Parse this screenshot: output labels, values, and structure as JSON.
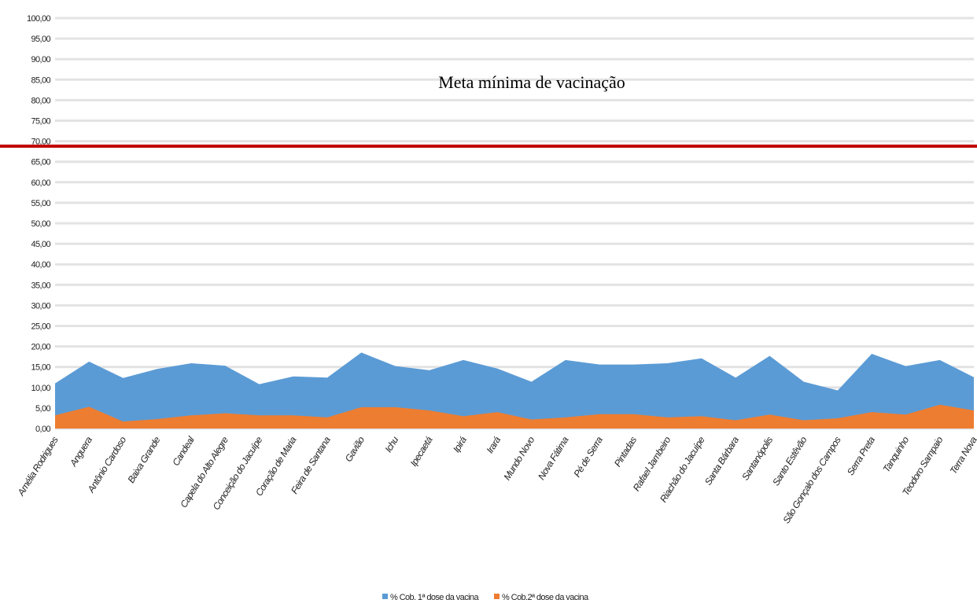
{
  "chart_data": {
    "type": "area",
    "annotation": "Meta mínima de vacinação",
    "reference_line": {
      "value": 68.8,
      "color": "#c00000"
    },
    "categories": [
      "Amélia Rodrigues",
      "Anguera",
      "Antônio Cardoso",
      "Baixa Grande",
      "Candeal",
      "Capela do Alto Alegre",
      "Conceição do Jacuípe",
      "Coração de Maria",
      "Feira de Santana",
      "Gavião",
      "Ichu",
      "Ipecaetá",
      "Ipirá",
      "Irará",
      "Mundo Novo",
      "Nova Fátima",
      "Pé de Serra",
      "Pintadas",
      "Rafael Jambeiro",
      "Riachão do Jacuípe",
      "Santa Bárbara",
      "Santanópolis",
      "Santo Estêvão",
      "São Gonçalo dos Campos",
      "Serra Preta",
      "Tanquinho",
      "Teodoro Sampaio",
      "Terra Nova"
    ],
    "series": [
      {
        "name": "% Cob. 1ª dose da vacina",
        "color": "#5b9bd5",
        "values": [
          11,
          16.3,
          12.3,
          14.5,
          15.9,
          15.3,
          10.8,
          12.7,
          12.4,
          18.5,
          15.2,
          14.2,
          16.7,
          14.6,
          11.4,
          16.7,
          15.6,
          15.6,
          15.9,
          17.1,
          12.4,
          17.7,
          11.4,
          9.3,
          18.2,
          15.2,
          16.7,
          12.5
        ]
      },
      {
        "name": "% Cob.2ª dose da vacina",
        "color": "#ed7d31",
        "values": [
          3.2,
          5.3,
          1.7,
          2.3,
          3.2,
          3.7,
          3.2,
          3.2,
          2.7,
          5.2,
          5.2,
          4.4,
          3.0,
          4.0,
          2.2,
          2.7,
          3.5,
          3.5,
          2.7,
          3.0,
          2.0,
          3.4,
          2.0,
          2.5,
          4.0,
          3.4,
          5.8,
          4.4
        ]
      }
    ],
    "ylim": [
      0,
      100
    ],
    "yticks": [
      {
        "value": 0,
        "label": "0,00"
      },
      {
        "value": 5,
        "label": "5,00"
      },
      {
        "value": 10,
        "label": "10,00"
      },
      {
        "value": 15,
        "label": "15,00"
      },
      {
        "value": 20,
        "label": "20,00"
      },
      {
        "value": 25,
        "label": "25,00"
      },
      {
        "value": 30,
        "label": "30,00"
      },
      {
        "value": 35,
        "label": "35,00"
      },
      {
        "value": 40,
        "label": "40,00"
      },
      {
        "value": 45,
        "label": "45,00"
      },
      {
        "value": 50,
        "label": "50,00"
      },
      {
        "value": 55,
        "label": "55,00"
      },
      {
        "value": 60,
        "label": "60,00"
      },
      {
        "value": 65,
        "label": "65,00"
      },
      {
        "value": 70,
        "label": "70,00"
      },
      {
        "value": 75,
        "label": "75,00"
      },
      {
        "value": 80,
        "label": "80,00"
      },
      {
        "value": 85,
        "label": "85,00"
      },
      {
        "value": 90,
        "label": "90,00"
      },
      {
        "value": 95,
        "label": "95,00"
      },
      {
        "value": 100,
        "label": "100,00"
      }
    ],
    "grid": true,
    "legend": "bottom"
  }
}
